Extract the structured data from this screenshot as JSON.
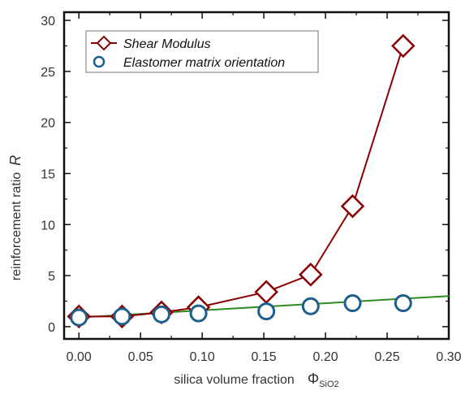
{
  "chart_data": {
    "type": "scatter",
    "xlabel": "silica volume fraction",
    "xlabel_symbol": "Φ",
    "xlabel_subscript": "SiO2",
    "ylabel": "reinforcement ratio",
    "ylabel_symbol": "R",
    "xlim": [
      -0.012,
      0.3
    ],
    "ylim": [
      -1.2,
      30.8
    ],
    "x_ticks": [
      "0.00",
      "0.05",
      "0.10",
      "0.15",
      "0.20",
      "0.25",
      "0.30"
    ],
    "y_ticks": [
      "0",
      "5",
      "10",
      "15",
      "20",
      "25",
      "30"
    ],
    "grid": false,
    "legend_position": "top-left",
    "series": [
      {
        "name": "Shear Modulus",
        "marker": "diamond",
        "color": "#8b0000",
        "line_style": "solid",
        "x": [
          0.0,
          0.035,
          0.067,
          0.097,
          0.152,
          0.188,
          0.222,
          0.263
        ],
        "y": [
          1.0,
          1.0,
          1.4,
          1.9,
          3.4,
          5.1,
          11.8,
          27.5
        ]
      },
      {
        "name": "Elastomer matrix orientation",
        "marker": "circle",
        "color": "#1f5f8b",
        "line_style": "none",
        "x": [
          0.0,
          0.035,
          0.067,
          0.097,
          0.152,
          0.188,
          0.222,
          0.263
        ],
        "y": [
          0.9,
          1.0,
          1.2,
          1.3,
          1.5,
          2.0,
          2.3,
          2.3
        ]
      }
    ],
    "fit_line": {
      "color": "#2e8b22",
      "x": [
        0.0,
        0.3
      ],
      "y": [
        0.9,
        3.0
      ]
    }
  }
}
